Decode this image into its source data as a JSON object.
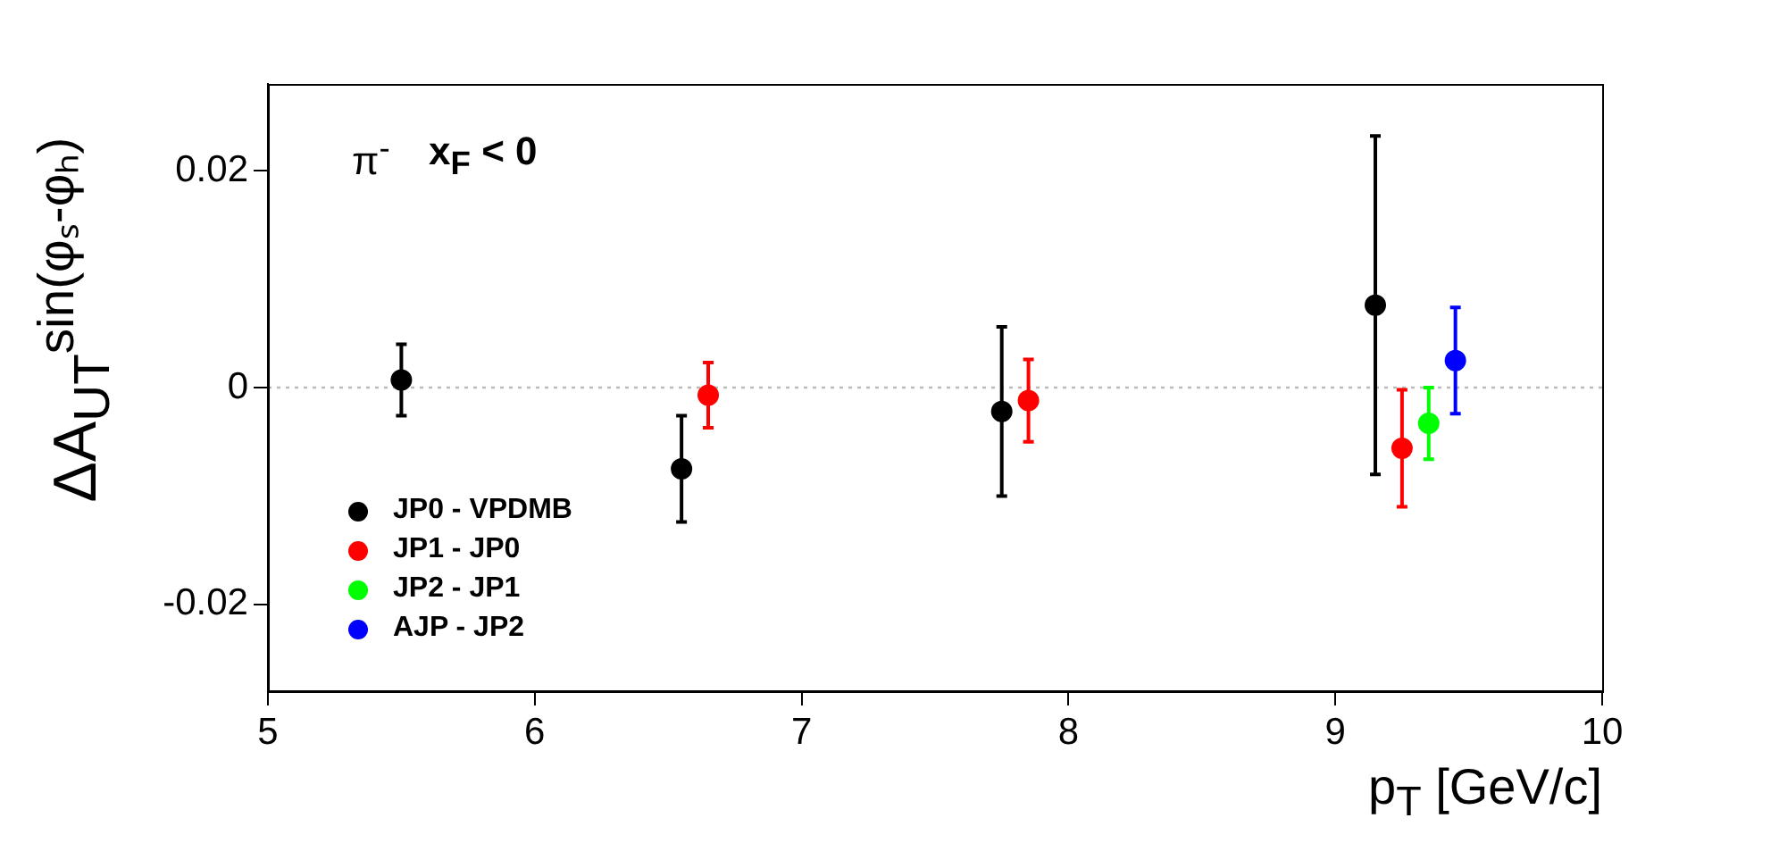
{
  "chart_data": {
    "type": "scatter",
    "xlabel": "p$_{T}$ [GeV/c]",
    "ylabel": "ΔA$_{UT}$$^{sin(φₛ-φₕ)}$",
    "annotations": [
      "π$^{-}$",
      "x$_{F}$ < 0"
    ],
    "xlim": [
      5,
      10
    ],
    "xticks": [
      5,
      6,
      7,
      8,
      9,
      10
    ],
    "ylim": [
      -0.028,
      0.028
    ],
    "yticks": [
      -0.02,
      0,
      0.02
    ],
    "grid": false,
    "legend": "bottom left",
    "marker": "circle",
    "ref_lines": [
      {
        "axis": "y",
        "value": 0,
        "color": "#bbbbbb",
        "line_style": "dotted"
      }
    ],
    "series": [
      {
        "name": "JP0 - VPDMB",
        "color": "#000000",
        "x": [
          5.5,
          6.55,
          7.75,
          9.15
        ],
        "values": [
          0.0007,
          -0.0075,
          -0.0022,
          0.0076
        ],
        "errors": [
          0.0033,
          0.0049,
          0.0078,
          0.0156
        ]
      },
      {
        "name": "JP1 - JP0",
        "color": "#ff0000",
        "x": [
          6.65,
          7.85,
          9.25
        ],
        "values": [
          -0.0007,
          -0.0012,
          -0.0056
        ],
        "errors": [
          0.003,
          0.0038,
          0.0054
        ]
      },
      {
        "name": "JP2 - JP1",
        "color": "#00ff00",
        "x": [
          9.35
        ],
        "values": [
          -0.0033
        ],
        "errors": [
          0.0033
        ]
      },
      {
        "name": "AJP - JP2",
        "color": "#0000ff",
        "x": [
          9.45
        ],
        "values": [
          0.0025
        ],
        "errors": [
          0.0049
        ]
      }
    ]
  }
}
